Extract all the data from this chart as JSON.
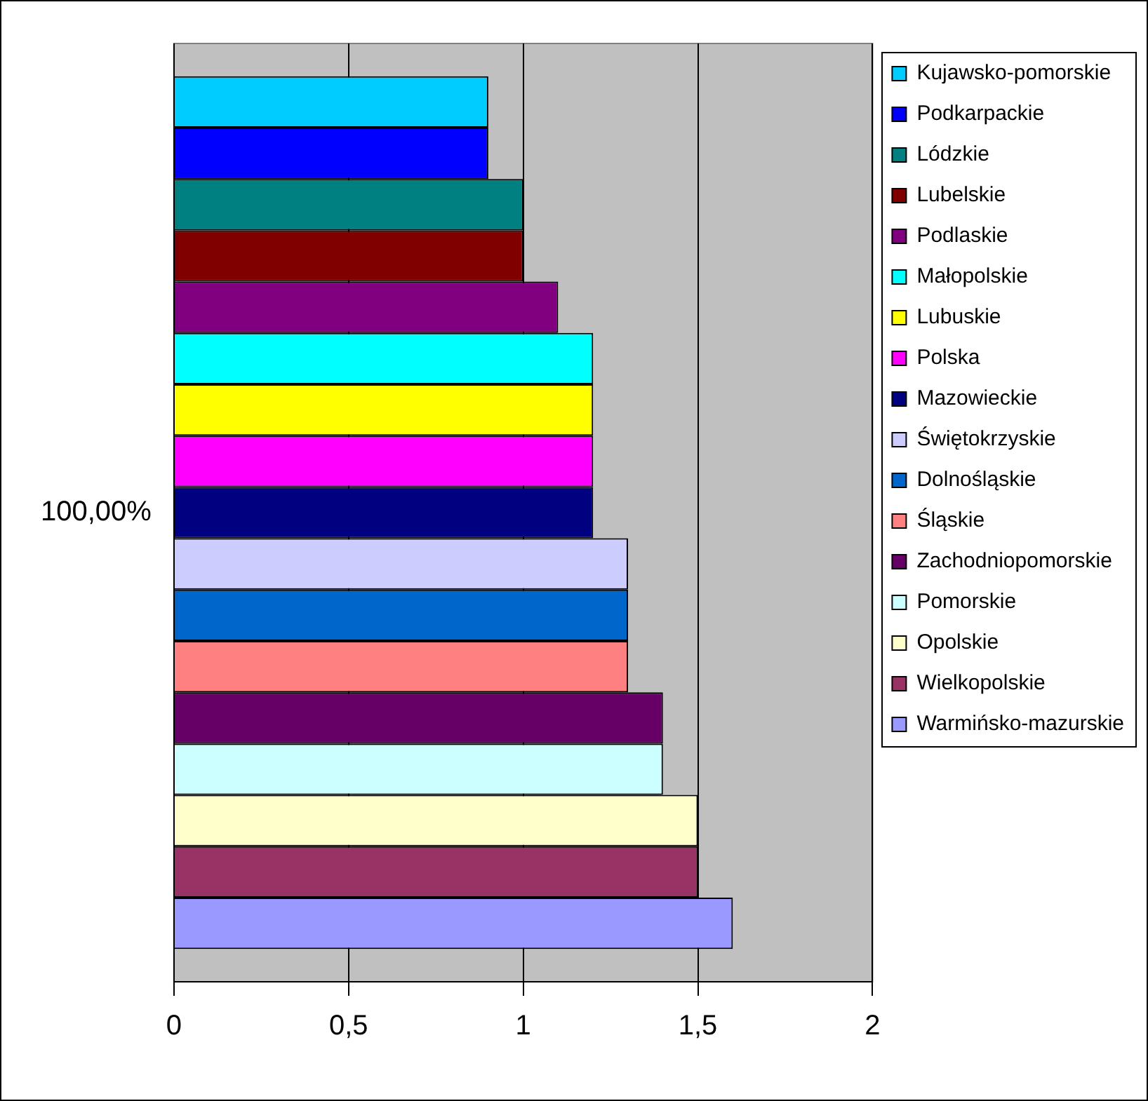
{
  "chart_data": {
    "type": "bar",
    "orientation": "horizontal",
    "categories": [
      "100,00%"
    ],
    "series": [
      {
        "name": "Kujawsko-pomorskie",
        "color": "#00ccff",
        "values": [
          0.9
        ]
      },
      {
        "name": "Podkarpackie",
        "color": "#0000ff",
        "values": [
          0.9
        ]
      },
      {
        "name": "Lódzkie",
        "color": "#008080",
        "values": [
          1.0
        ]
      },
      {
        "name": "Lubelskie",
        "color": "#800000",
        "values": [
          1.0
        ]
      },
      {
        "name": "Podlaskie",
        "color": "#800080",
        "values": [
          1.1
        ]
      },
      {
        "name": "Małopolskie",
        "color": "#00ffff",
        "values": [
          1.2
        ]
      },
      {
        "name": "Lubuskie",
        "color": "#ffff00",
        "values": [
          1.2
        ]
      },
      {
        "name": "Polska",
        "color": "#ff00ff",
        "values": [
          1.2
        ]
      },
      {
        "name": "Mazowieckie",
        "color": "#000080",
        "values": [
          1.2
        ]
      },
      {
        "name": "Świętokrzyskie",
        "color": "#ccccff",
        "values": [
          1.3
        ]
      },
      {
        "name": "Dolnośląskie",
        "color": "#0066cc",
        "values": [
          1.3
        ]
      },
      {
        "name": "Śląskie",
        "color": "#ff8080",
        "values": [
          1.3
        ]
      },
      {
        "name": "Zachodniopomorskie",
        "color": "#660066",
        "values": [
          1.4
        ]
      },
      {
        "name": "Pomorskie",
        "color": "#ccffff",
        "values": [
          1.4
        ]
      },
      {
        "name": "Opolskie",
        "color": "#ffffcc",
        "values": [
          1.5
        ]
      },
      {
        "name": "Wielkopolskie",
        "color": "#993366",
        "values": [
          1.5
        ]
      },
      {
        "name": "Warmińsko-mazurskie",
        "color": "#9999ff",
        "values": [
          1.6
        ]
      }
    ],
    "xlim": [
      0,
      2
    ],
    "xticks": [
      0,
      {
        "value": 0.5,
        "label": "0,5"
      },
      1,
      {
        "value": 1.5,
        "label": "1,5"
      },
      2
    ],
    "grid": "x",
    "legend": "right"
  }
}
